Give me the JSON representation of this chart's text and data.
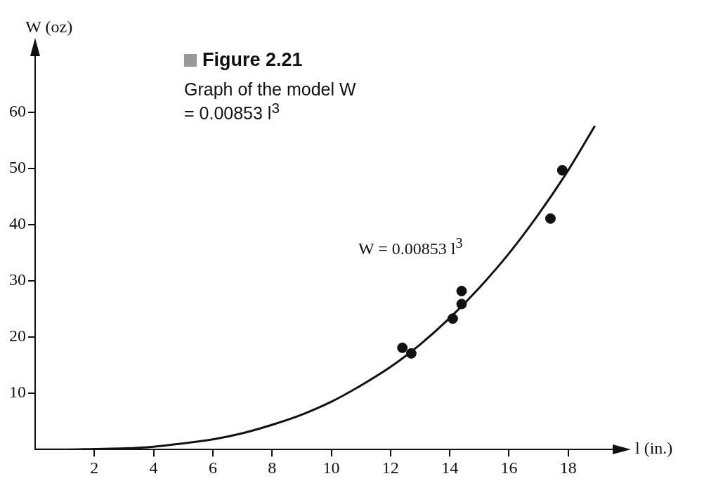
{
  "chart_data": {
    "type": "scatter",
    "title": "Figure 2.21",
    "subtitle": "Graph of the model W = 0.00853 l$^{3}$",
    "xlabel": "l (in.)",
    "ylabel": "W (oz)",
    "xlim": [
      0,
      19.5
    ],
    "ylim": [
      0,
      70
    ],
    "xticks": [
      2,
      4,
      6,
      8,
      10,
      12,
      14,
      16,
      18
    ],
    "yticks": [
      10,
      20,
      30,
      40,
      50,
      60
    ],
    "annotations": [
      "W = 0.00853 l$^{3}$"
    ],
    "series": [
      {
        "type": "line",
        "color": "#111111",
        "marker": "none",
        "x": [
          0,
          1,
          2,
          3,
          4,
          5,
          6,
          7,
          8,
          9,
          10,
          11,
          12,
          13,
          14,
          15,
          16,
          17,
          18,
          18.9
        ],
        "values": [
          0,
          0,
          0.1,
          0.2,
          0.5,
          1.1,
          1.8,
          2.9,
          4.4,
          6.2,
          8.5,
          11.4,
          14.7,
          18.7,
          23.4,
          28.8,
          34.9,
          41.9,
          49.7,
          57.6
        ]
      },
      {
        "color": "#111111",
        "marker": "circle",
        "x": [
          12.4,
          12.7,
          14.1,
          14.4,
          14.4,
          17.4,
          17.8
        ],
        "values": [
          18.1,
          17.1,
          23.3,
          28.2,
          25.9,
          41.1,
          49.7
        ]
      }
    ]
  }
}
